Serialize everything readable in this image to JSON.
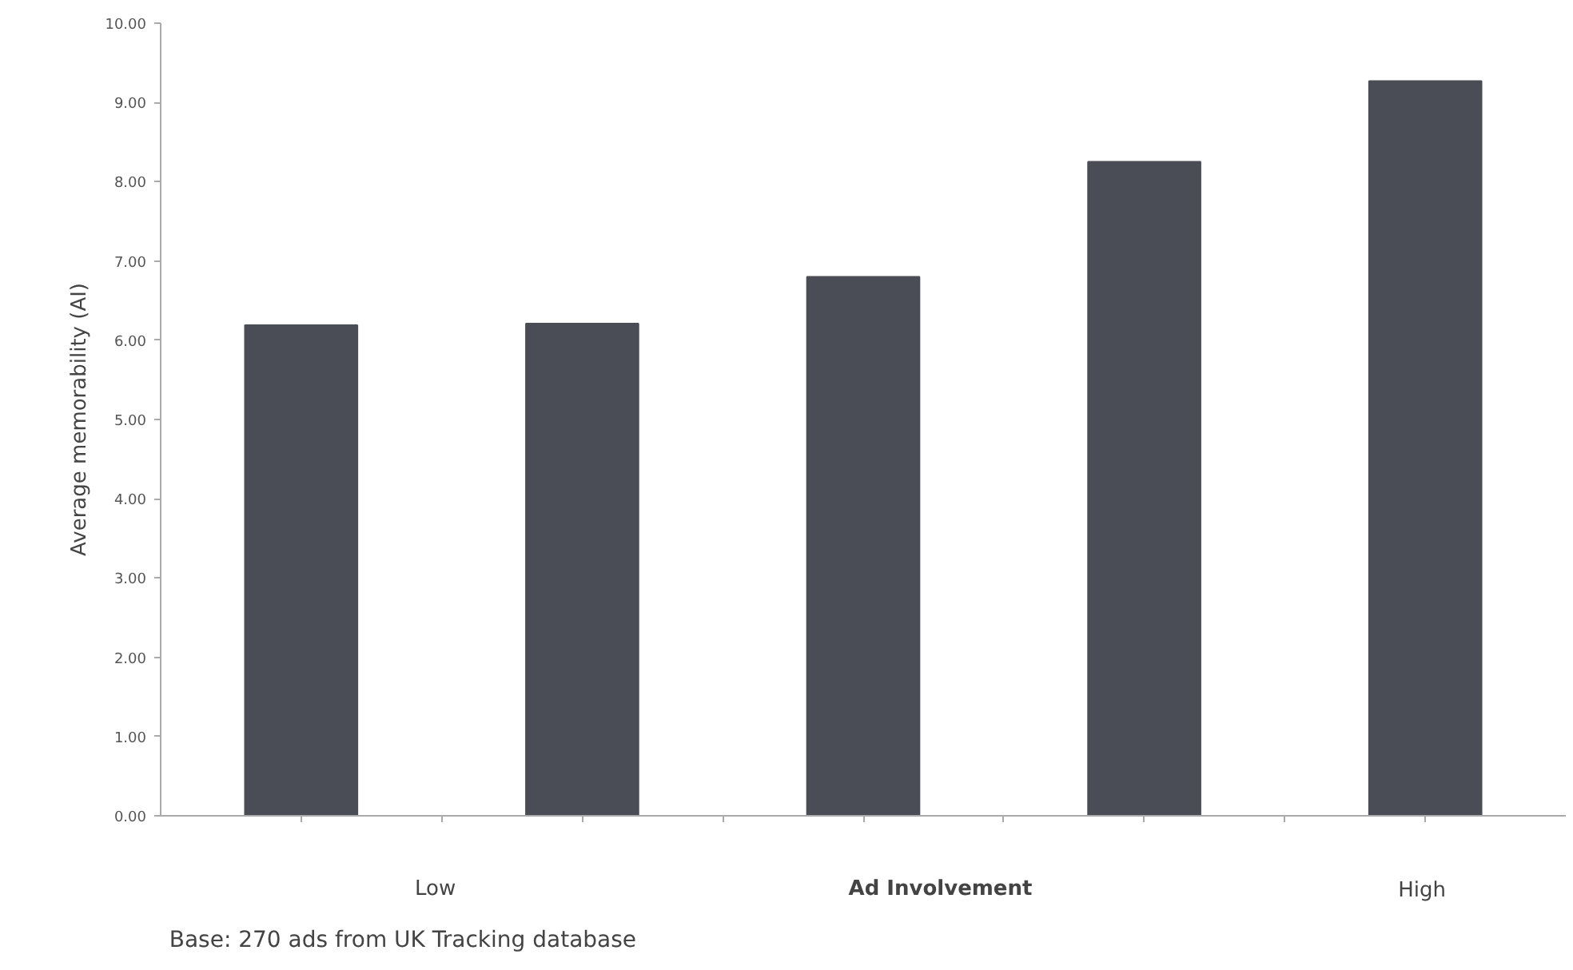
{
  "chart_data": {
    "type": "bar",
    "categories": [
      null,
      null,
      null,
      null,
      null
    ],
    "values": [
      6.19,
      6.21,
      6.8,
      8.25,
      9.27
    ],
    "color": "#4a4d55",
    "ylabel": "Average memorability (AI)",
    "xlabel": "Ad Involvement",
    "ylim": [
      0,
      10
    ],
    "yticks": [
      {
        "value": 0,
        "label": "0.00"
      },
      {
        "value": 1,
        "label": "1.00"
      },
      {
        "value": 2,
        "label": "2.00"
      },
      {
        "value": 3,
        "label": "3.00"
      },
      {
        "value": 4,
        "label": "4.00"
      },
      {
        "value": 5,
        "label": "5.00"
      },
      {
        "value": 6,
        "label": "6.00"
      },
      {
        "value": 7,
        "label": "7.00"
      },
      {
        "value": 8,
        "label": "8.00"
      },
      {
        "value": 9,
        "label": "9.00"
      },
      {
        "value": 10,
        "label": "10.00"
      }
    ],
    "annotations": [
      "Low",
      "High",
      "Base: 270 ads from UK Tracking database"
    ],
    "grid": false
  }
}
